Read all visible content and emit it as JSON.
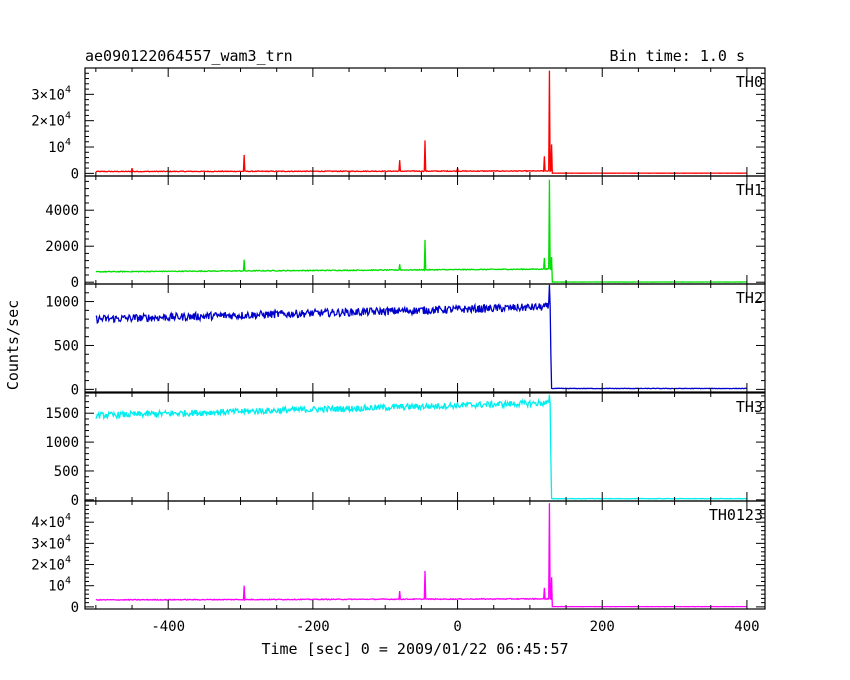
{
  "header": {
    "title": "ae090122064557_wam3_trn",
    "bin_time": "Bin time: 1.0 s"
  },
  "axes": {
    "xlabel": "Time [sec] 0 = 2009/01/22 06:45:57",
    "ylabel": "Counts/sec",
    "x_ticks": [
      "-400",
      "-200",
      "0",
      "200",
      "400"
    ]
  },
  "chart_data": {
    "type": "line",
    "xlim": [
      -515,
      425
    ],
    "x_range_data": [
      -500,
      400
    ],
    "trigger_time": 130,
    "grid": false,
    "panels": [
      {
        "name": "TH0",
        "color": "#ff0000",
        "ylim": [
          -1000,
          40000
        ],
        "y_ticks": [
          {
            "v": 0,
            "base": "0",
            "exp": ""
          },
          {
            "v": 10000,
            "base": "10",
            "exp": "4"
          },
          {
            "v": 20000,
            "base": "2×10",
            "exp": "4"
          },
          {
            "v": 30000,
            "base": "3×10",
            "exp": "4"
          }
        ],
        "pre_start": 700,
        "pre_end": 900,
        "noise": 150,
        "post_level": 80,
        "post_noise": 20,
        "spikes": [
          {
            "x": -450,
            "y": 2000
          },
          {
            "x": -295,
            "y": 7000
          },
          {
            "x": -80,
            "y": 5000
          },
          {
            "x": -45,
            "y": 12500
          },
          {
            "x": 0,
            "y": 2000
          },
          {
            "x": 120,
            "y": 6500
          },
          {
            "x": 127,
            "y": 39000
          },
          {
            "x": 130,
            "y": 11000
          }
        ]
      },
      {
        "name": "TH1",
        "color": "#00e000",
        "ylim": [
          -100,
          5900
        ],
        "y_ticks": [
          {
            "v": 0,
            "base": "0",
            "exp": ""
          },
          {
            "v": 2000,
            "base": "2000",
            "exp": ""
          },
          {
            "v": 4000,
            "base": "4000",
            "exp": ""
          }
        ],
        "pre_start": 580,
        "pre_end": 730,
        "noise": 25,
        "post_level": 10,
        "post_noise": 4,
        "spikes": [
          {
            "x": -295,
            "y": 1250
          },
          {
            "x": -80,
            "y": 1000
          },
          {
            "x": -45,
            "y": 2350
          },
          {
            "x": 120,
            "y": 1350
          },
          {
            "x": 127,
            "y": 5700
          },
          {
            "x": 130,
            "y": 1400
          }
        ]
      },
      {
        "name": "TH2",
        "color": "#0000cc",
        "ylim": [
          -30,
          1200
        ],
        "y_ticks": [
          {
            "v": 0,
            "base": "0",
            "exp": ""
          },
          {
            "v": 500,
            "base": "500",
            "exp": ""
          },
          {
            "v": 1000,
            "base": "1000",
            "exp": ""
          }
        ],
        "pre_start": 800,
        "pre_end": 940,
        "noise": 45,
        "post_level": 10,
        "post_noise": 3,
        "spikes": [
          {
            "x": 127,
            "y": 1190
          },
          {
            "x": 129,
            "y": 400
          }
        ]
      },
      {
        "name": "TH3",
        "color": "#00eeee",
        "ylim": [
          -20,
          1850
        ],
        "y_ticks": [
          {
            "v": 0,
            "base": "0",
            "exp": ""
          },
          {
            "v": 500,
            "base": "500",
            "exp": ""
          },
          {
            "v": 1000,
            "base": "1000",
            "exp": ""
          },
          {
            "v": 1500,
            "base": "1500",
            "exp": ""
          }
        ],
        "pre_start": 1460,
        "pre_end": 1680,
        "noise": 55,
        "post_level": 20,
        "post_noise": 4,
        "spikes": [
          {
            "x": 127,
            "y": 1820
          },
          {
            "x": 129,
            "y": 700
          }
        ]
      },
      {
        "name": "TH0123",
        "color": "#ff00ff",
        "ylim": [
          -1000,
          50000
        ],
        "y_ticks": [
          {
            "v": 0,
            "base": "0",
            "exp": ""
          },
          {
            "v": 10000,
            "base": "10",
            "exp": "4"
          },
          {
            "v": 20000,
            "base": "2×10",
            "exp": "4"
          },
          {
            "v": 30000,
            "base": "3×10",
            "exp": "4"
          },
          {
            "v": 40000,
            "base": "4×10",
            "exp": "4"
          }
        ],
        "pre_start": 3300,
        "pre_end": 3800,
        "noise": 200,
        "post_level": 120,
        "post_noise": 30,
        "spikes": [
          {
            "x": -295,
            "y": 10000
          },
          {
            "x": -80,
            "y": 7500
          },
          {
            "x": -45,
            "y": 17000
          },
          {
            "x": 120,
            "y": 9000
          },
          {
            "x": 127,
            "y": 49000
          },
          {
            "x": 130,
            "y": 14000
          }
        ]
      }
    ]
  }
}
